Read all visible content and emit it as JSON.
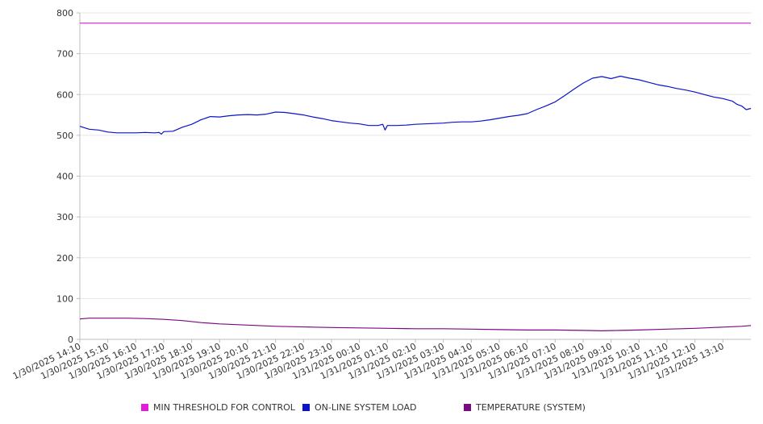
{
  "chart_data": {
    "type": "line",
    "title": "",
    "xlabel": "",
    "ylabel": "",
    "ylim": [
      0,
      800
    ],
    "y_ticks": [
      "0",
      "100",
      "200",
      "300",
      "400",
      "500",
      "600",
      "700",
      "800"
    ],
    "x_ticks": [
      "1/30/2025 14:10",
      "1/30/2025 15:10",
      "1/30/2025 16:10",
      "1/30/2025 17:10",
      "1/30/2025 18:10",
      "1/30/2025 19:10",
      "1/30/2025 20:10",
      "1/30/2025 21:10",
      "1/30/2025 22:10",
      "1/30/2025 23:10",
      "1/31/2025 00:10",
      "1/31/2025 01:10",
      "1/31/2025 02:10",
      "1/31/2025 03:10",
      "1/31/2025 04:10",
      "1/31/2025 05:10",
      "1/31/2025 06:10",
      "1/31/2025 07:10",
      "1/31/2025 08:10",
      "1/31/2025 09:10",
      "1/31/2025 10:10",
      "1/31/2025 11:10",
      "1/31/2025 12:10",
      "1/31/2025 13:10"
    ],
    "x_range": [
      "1/30/2025 14:10",
      "1/31/2025 14:10"
    ],
    "grid": true,
    "legend_position": "bottom",
    "series": [
      {
        "name": "MIN THRESHOLD FOR CONTROL",
        "color": "#e31ad6",
        "points": [
          [
            "1/30/2025 14:10",
            775
          ],
          [
            "1/31/2025 14:10",
            775
          ]
        ]
      },
      {
        "name": "ON-LINE SYSTEM LOAD",
        "color": "#0a14c8",
        "points": [
          [
            "1/30/2025 14:10",
            522
          ],
          [
            "1/30/2025 14:30",
            515
          ],
          [
            "1/30/2025 14:50",
            513
          ],
          [
            "1/30/2025 15:10",
            508
          ],
          [
            "1/30/2025 15:30",
            506
          ],
          [
            "1/30/2025 15:50",
            506
          ],
          [
            "1/30/2025 16:10",
            506
          ],
          [
            "1/30/2025 16:30",
            507
          ],
          [
            "1/30/2025 16:50",
            506
          ],
          [
            "1/30/2025 17:00",
            507
          ],
          [
            "1/30/2025 17:05",
            503
          ],
          [
            "1/30/2025 17:10",
            509
          ],
          [
            "1/30/2025 17:30",
            510
          ],
          [
            "1/30/2025 17:50",
            520
          ],
          [
            "1/30/2025 18:10",
            527
          ],
          [
            "1/30/2025 18:30",
            538
          ],
          [
            "1/30/2025 18:50",
            546
          ],
          [
            "1/30/2025 19:10",
            545
          ],
          [
            "1/30/2025 19:30",
            548
          ],
          [
            "1/30/2025 19:50",
            550
          ],
          [
            "1/30/2025 20:10",
            551
          ],
          [
            "1/30/2025 20:30",
            550
          ],
          [
            "1/30/2025 20:50",
            552
          ],
          [
            "1/30/2025 21:10",
            557
          ],
          [
            "1/30/2025 21:30",
            556
          ],
          [
            "1/30/2025 21:50",
            553
          ],
          [
            "1/30/2025 22:10",
            550
          ],
          [
            "1/30/2025 22:30",
            545
          ],
          [
            "1/30/2025 22:50",
            541
          ],
          [
            "1/30/2025 23:10",
            536
          ],
          [
            "1/30/2025 23:30",
            533
          ],
          [
            "1/30/2025 23:50",
            530
          ],
          [
            "1/31/2025 00:10",
            528
          ],
          [
            "1/31/2025 00:30",
            524
          ],
          [
            "1/31/2025 00:50",
            524
          ],
          [
            "1/31/2025 01:00",
            527
          ],
          [
            "1/31/2025 01:05",
            513
          ],
          [
            "1/31/2025 01:10",
            524
          ],
          [
            "1/31/2025 01:30",
            524
          ],
          [
            "1/31/2025 01:50",
            525
          ],
          [
            "1/31/2025 02:10",
            527
          ],
          [
            "1/31/2025 02:30",
            528
          ],
          [
            "1/31/2025 02:50",
            529
          ],
          [
            "1/31/2025 03:10",
            530
          ],
          [
            "1/31/2025 03:30",
            532
          ],
          [
            "1/31/2025 03:50",
            533
          ],
          [
            "1/31/2025 04:10",
            533
          ],
          [
            "1/31/2025 04:30",
            535
          ],
          [
            "1/31/2025 04:50",
            538
          ],
          [
            "1/31/2025 05:10",
            542
          ],
          [
            "1/31/2025 05:30",
            546
          ],
          [
            "1/31/2025 05:50",
            549
          ],
          [
            "1/31/2025 06:10",
            553
          ],
          [
            "1/31/2025 06:30",
            563
          ],
          [
            "1/31/2025 06:50",
            572
          ],
          [
            "1/31/2025 07:10",
            582
          ],
          [
            "1/31/2025 07:30",
            597
          ],
          [
            "1/31/2025 07:50",
            613
          ],
          [
            "1/31/2025 08:10",
            628
          ],
          [
            "1/31/2025 08:30",
            640
          ],
          [
            "1/31/2025 08:50",
            644
          ],
          [
            "1/31/2025 09:10",
            639
          ],
          [
            "1/31/2025 09:30",
            645
          ],
          [
            "1/31/2025 09:50",
            640
          ],
          [
            "1/31/2025 10:10",
            636
          ],
          [
            "1/31/2025 10:30",
            630
          ],
          [
            "1/31/2025 10:50",
            624
          ],
          [
            "1/31/2025 11:10",
            620
          ],
          [
            "1/31/2025 11:30",
            615
          ],
          [
            "1/31/2025 11:50",
            611
          ],
          [
            "1/31/2025 12:10",
            606
          ],
          [
            "1/31/2025 12:30",
            600
          ],
          [
            "1/31/2025 12:50",
            594
          ],
          [
            "1/31/2025 13:10",
            590
          ],
          [
            "1/31/2025 13:30",
            584
          ],
          [
            "1/31/2025 13:40",
            576
          ],
          [
            "1/31/2025 13:50",
            572
          ],
          [
            "1/31/2025 14:00",
            563
          ],
          [
            "1/31/2025 14:10",
            566
          ]
        ]
      },
      {
        "name": "TEMPERATURE (SYSTEM)",
        "color": "#7a0a82",
        "points": [
          [
            "1/30/2025 14:10",
            50
          ],
          [
            "1/30/2025 14:30",
            52
          ],
          [
            "1/30/2025 15:10",
            52
          ],
          [
            "1/30/2025 15:50",
            52
          ],
          [
            "1/30/2025 16:30",
            51
          ],
          [
            "1/30/2025 17:10",
            49
          ],
          [
            "1/30/2025 17:50",
            46
          ],
          [
            "1/30/2025 18:30",
            41
          ],
          [
            "1/30/2025 19:10",
            38
          ],
          [
            "1/30/2025 19:50",
            36
          ],
          [
            "1/30/2025 20:30",
            34
          ],
          [
            "1/30/2025 21:10",
            32
          ],
          [
            "1/30/2025 21:50",
            31
          ],
          [
            "1/30/2025 22:30",
            30
          ],
          [
            "1/30/2025 23:10",
            29
          ],
          [
            "1/31/2025 00:10",
            28
          ],
          [
            "1/31/2025 01:10",
            27
          ],
          [
            "1/31/2025 02:10",
            26
          ],
          [
            "1/31/2025 03:10",
            26
          ],
          [
            "1/31/2025 04:10",
            25
          ],
          [
            "1/31/2025 05:10",
            24
          ],
          [
            "1/31/2025 06:10",
            23
          ],
          [
            "1/31/2025 07:10",
            23
          ],
          [
            "1/31/2025 08:10",
            22
          ],
          [
            "1/31/2025 08:50",
            21
          ],
          [
            "1/31/2025 09:30",
            22
          ],
          [
            "1/31/2025 10:10",
            23
          ],
          [
            "1/31/2025 11:10",
            25
          ],
          [
            "1/31/2025 12:10",
            27
          ],
          [
            "1/31/2025 13:10",
            30
          ],
          [
            "1/31/2025 13:50",
            32
          ],
          [
            "1/31/2025 14:10",
            34
          ]
        ]
      }
    ]
  }
}
